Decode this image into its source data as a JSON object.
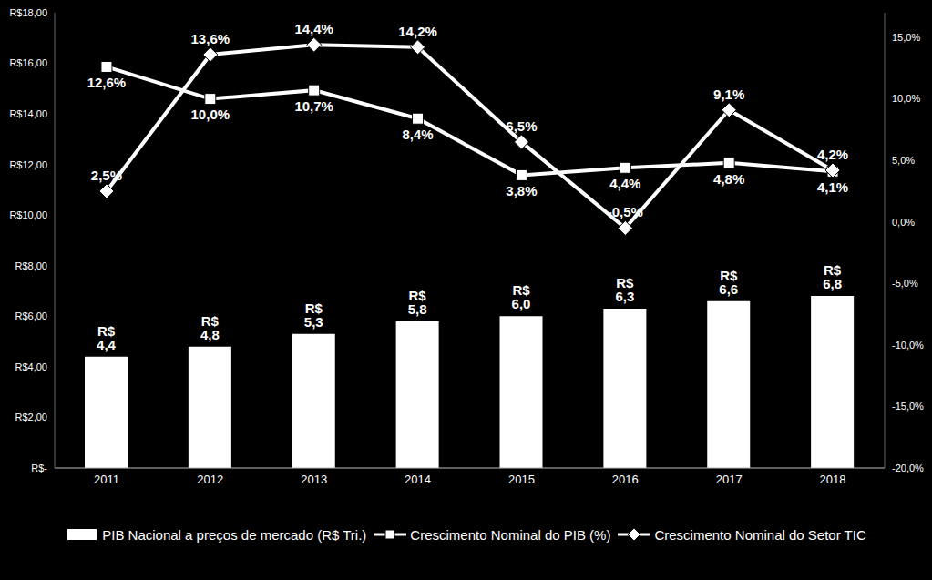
{
  "chart_data": {
    "type": "bar",
    "categories": [
      "2011",
      "2012",
      "2013",
      "2014",
      "2015",
      "2016",
      "2017",
      "2018"
    ],
    "series": [
      {
        "name": "PIB Nacional a preços de mercado (R$ Tri.)",
        "type": "bar",
        "color": "#ffffff",
        "values": [
          4.4,
          4.8,
          5.3,
          5.8,
          6.0,
          6.3,
          6.6,
          6.8
        ],
        "value_labels": [
          "R$ 4,4",
          "R$ 4,8",
          "R$ 5,3",
          "R$ 5,8",
          "R$ 6,0",
          "R$ 6,3",
          "R$ 6,6",
          "R$ 6,8"
        ]
      },
      {
        "name": "Crescimento Nominal do PIB (%)",
        "type": "line",
        "axis": "y2",
        "color": "#ffffff",
        "marker": "square",
        "values": [
          12.6,
          10.0,
          10.7,
          8.4,
          3.8,
          4.4,
          4.8,
          4.1
        ],
        "value_labels": [
          "12,6%",
          "10,0%",
          "10,7%",
          "8,4%",
          "3,8%",
          "4,4%",
          "4,8%",
          "4,1%"
        ]
      },
      {
        "name": "Crescimento Nominal do Setor TIC",
        "type": "line",
        "axis": "y2",
        "color": "#ffffff",
        "marker": "diamond",
        "values": [
          2.5,
          13.6,
          14.4,
          14.2,
          6.5,
          -0.5,
          9.1,
          4.2
        ],
        "value_labels": [
          "2,5%",
          "13,6%",
          "14,4%",
          "14,2%",
          "6,5%",
          "-0,5%",
          "9,1%",
          "4,2%"
        ]
      }
    ],
    "ylim": [
      0,
      18
    ],
    "yticks": [
      {
        "value": 0,
        "label": "R$-"
      },
      {
        "value": 2,
        "label": "R$2,00"
      },
      {
        "value": 4,
        "label": "R$4,00"
      },
      {
        "value": 6,
        "label": "R$6,00"
      },
      {
        "value": 8,
        "label": "R$8,00"
      },
      {
        "value": 10,
        "label": "R$10,00"
      },
      {
        "value": 12,
        "label": "R$12,00"
      },
      {
        "value": 14,
        "label": "R$14,00"
      },
      {
        "value": 16,
        "label": "R$16,00"
      },
      {
        "value": 18,
        "label": "R$18,00"
      }
    ],
    "y2lim": [
      -20,
      17
    ],
    "y2ticks": [
      {
        "value": -20,
        "label": "-20,0%"
      },
      {
        "value": -15,
        "label": "-15,0%"
      },
      {
        "value": -10,
        "label": "-10,0%"
      },
      {
        "value": -5,
        "label": "-5,0%"
      },
      {
        "value": 0,
        "label": "0,0%"
      },
      {
        "value": 5,
        "label": "5,0%"
      },
      {
        "value": 10,
        "label": "10,0%"
      },
      {
        "value": 15,
        "label": "15,0%"
      }
    ],
    "data_labels": true,
    "legend": "bottom",
    "grid": false
  }
}
